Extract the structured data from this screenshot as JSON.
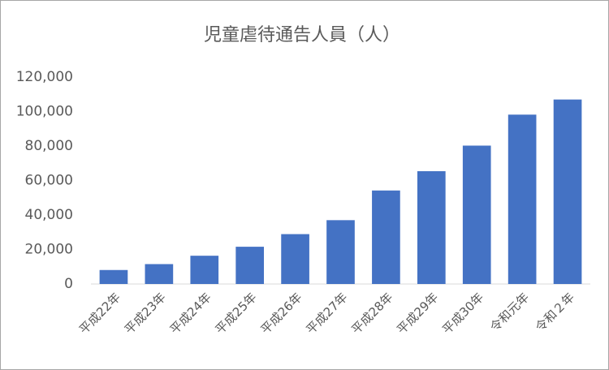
{
  "chart_data": {
    "type": "bar",
    "title": "児童虐待通告人員（人）",
    "categories": [
      "平成22年",
      "平成23年",
      "平成24年",
      "平成25年",
      "平成26年",
      "平成27年",
      "平成28年",
      "平成29年",
      "平成30年",
      "令和元年",
      "令和２年"
    ],
    "values": [
      8108,
      11536,
      16387,
      21603,
      28923,
      37020,
      54227,
      65431,
      80252,
      98222,
      106991
    ],
    "color": "#4472c4",
    "ylim": [
      0,
      120000
    ],
    "yticks": [
      0,
      {
        "value": 20000,
        "label": "20,000"
      },
      {
        "value": 40000,
        "label": "40,000"
      },
      {
        "value": 60000,
        "label": "60,000"
      },
      {
        "value": 80000,
        "label": "80,000"
      },
      {
        "value": 100000,
        "label": "100,000"
      },
      {
        "value": 120000,
        "label": "120,000"
      }
    ],
    "grid": false
  }
}
